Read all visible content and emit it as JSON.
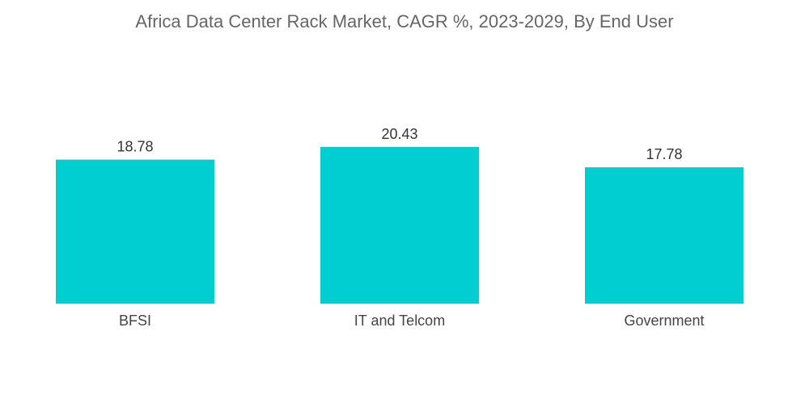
{
  "chart_data": {
    "type": "bar",
    "title": "Africa Data Center Rack Market, CAGR %, 2023-2029, By End User",
    "xlabel": "",
    "ylabel": "",
    "categories": [
      "BFSI",
      "IT and Telcom",
      "Government"
    ],
    "values": [
      18.78,
      20.43,
      17.78
    ],
    "value_labels": [
      "18.78",
      "20.43",
      "17.78"
    ],
    "ylim": [
      0,
      20.43
    ],
    "bar_color": "#00CED1",
    "grid": false,
    "legend": "none"
  }
}
